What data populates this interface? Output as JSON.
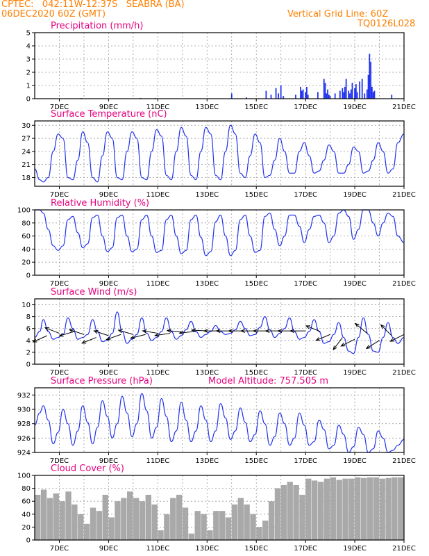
{
  "header": {
    "station": "CPTEC:   042:11W-12:37S   SEABRA (BA)",
    "datetime": "06DEC2020 60Z (GMT)",
    "grid_note": "Vertical Grid Line: 60Z",
    "model_code": "TQ0126L028",
    "model_altitude": "Model Altitude: 757.505 m"
  },
  "colors": {
    "header": "#ff7f00",
    "panel_title": "#e6007e",
    "series": "#2233ee",
    "cloud": "#a9a9a9",
    "wind_arrow": "#000000"
  },
  "x_axis": {
    "start": "06DEC2020 00Z",
    "end": "21DEC2020 00Z",
    "tick_labels": [
      "7DEC",
      "9DEC",
      "11DEC",
      "13DEC",
      "15DEC",
      "17DEC",
      "19DEC",
      "21DEC"
    ],
    "tick_days": [
      7,
      9,
      11,
      13,
      15,
      17,
      19,
      21
    ],
    "vertical_grid": "dotted, daily"
  },
  "chart_data": [
    {
      "type": "bar",
      "title": "Precipitation (mm/h)",
      "ylim": [
        0,
        5
      ],
      "yticks": [
        0,
        1,
        2,
        3,
        4,
        5
      ],
      "x": [
        7.9,
        10.3,
        10.9,
        14.0,
        14.6,
        15.4,
        15.6,
        15.8,
        15.9,
        16.0,
        16.1,
        16.6,
        16.8,
        16.85,
        16.9,
        17.0,
        17.05,
        17.1,
        17.5,
        17.75,
        17.8,
        17.85,
        17.9,
        17.95,
        18.0,
        18.2,
        18.4,
        18.5,
        18.55,
        18.6,
        18.65,
        18.75,
        18.8,
        18.85,
        18.9,
        19.0,
        19.05,
        19.1,
        19.2,
        19.3,
        19.4,
        19.5,
        19.55,
        19.6,
        19.65,
        19.7,
        19.75,
        19.8,
        20.5
      ],
      "values": [
        0.05,
        0.05,
        0.05,
        0.4,
        0.1,
        0.6,
        0.3,
        0.8,
        0.4,
        1.0,
        0.2,
        0.3,
        0.9,
        0.6,
        0.7,
        0.5,
        0.9,
        0.3,
        0.5,
        1.5,
        1.2,
        0.4,
        0.7,
        0.3,
        0.2,
        0.4,
        0.6,
        0.8,
        0.5,
        0.9,
        1.5,
        0.6,
        0.4,
        0.7,
        1.2,
        0.8,
        1.1,
        0.5,
        1.3,
        1.5,
        0.4,
        0.7,
        1.8,
        3.4,
        2.8,
        0.9,
        0.5,
        0.6,
        0.3
      ]
    },
    {
      "type": "line",
      "title": "Surface Temperature (nC)",
      "ylim": [
        16,
        31
      ],
      "yticks": [
        18,
        21,
        24,
        27,
        30
      ],
      "x": [
        6.0,
        6.2,
        6.35,
        6.55,
        6.75,
        6.95,
        7.15,
        7.35,
        7.55,
        7.75,
        7.95,
        8.15,
        8.35,
        8.55,
        8.75,
        8.95,
        9.15,
        9.35,
        9.55,
        9.75,
        9.95,
        10.15,
        10.35,
        10.55,
        10.75,
        10.95,
        11.15,
        11.35,
        11.55,
        11.75,
        11.95,
        12.15,
        12.35,
        12.55,
        12.75,
        12.95,
        13.15,
        13.35,
        13.55,
        13.75,
        13.95,
        14.15,
        14.35,
        14.55,
        14.75,
        14.95,
        15.15,
        15.35,
        15.55,
        15.75,
        15.95,
        16.15,
        16.35,
        16.55,
        16.75,
        16.95,
        17.15,
        17.35,
        17.55,
        17.75,
        17.95,
        18.15,
        18.35,
        18.55,
        18.75,
        18.95,
        19.15,
        19.35,
        19.55,
        19.75,
        19.95,
        20.15,
        20.35,
        20.55,
        20.75,
        21.0
      ],
      "values": [
        20,
        17.5,
        17,
        18,
        24,
        28,
        27,
        18,
        17.5,
        22,
        28.5,
        26,
        18,
        17,
        23,
        28.5,
        27,
        18,
        17.5,
        24,
        28.5,
        27,
        18,
        17.5,
        24,
        29,
        27.5,
        18.5,
        17.5,
        24,
        29.5,
        27.5,
        18.5,
        17.5,
        24,
        29.5,
        28,
        18.5,
        17.5,
        24,
        30,
        28,
        19,
        18,
        23,
        28,
        26,
        18,
        18.5,
        22,
        27,
        24,
        19,
        19,
        24,
        26,
        23,
        19,
        19.5,
        22,
        25.5,
        24,
        19,
        19,
        21,
        25,
        24,
        19,
        19.5,
        22,
        26,
        24,
        19,
        20,
        26,
        28
      ]
    },
    {
      "type": "line",
      "title": "Relative Humidity (%)",
      "ylim": [
        0,
        100
      ],
      "yticks": [
        0,
        20,
        40,
        60,
        80,
        100
      ],
      "x": [
        6.0,
        6.2,
        6.35,
        6.55,
        6.75,
        6.95,
        7.15,
        7.35,
        7.55,
        7.75,
        7.95,
        8.15,
        8.35,
        8.55,
        8.75,
        8.95,
        9.15,
        9.35,
        9.55,
        9.75,
        9.95,
        10.15,
        10.35,
        10.55,
        10.75,
        10.95,
        11.15,
        11.35,
        11.55,
        11.75,
        11.95,
        12.15,
        12.35,
        12.55,
        12.75,
        12.95,
        13.15,
        13.35,
        13.55,
        13.75,
        13.95,
        14.15,
        14.35,
        14.55,
        14.75,
        14.95,
        15.15,
        15.35,
        15.55,
        15.75,
        15.95,
        16.15,
        16.35,
        16.55,
        16.75,
        16.95,
        17.15,
        17.35,
        17.55,
        17.75,
        17.95,
        18.15,
        18.35,
        18.55,
        18.75,
        18.95,
        19.15,
        19.35,
        19.55,
        19.75,
        19.95,
        20.15,
        20.35,
        20.55,
        20.75,
        21.0
      ],
      "values": [
        100,
        100,
        95,
        70,
        45,
        38,
        45,
        85,
        90,
        65,
        42,
        48,
        88,
        92,
        60,
        36,
        42,
        88,
        92,
        60,
        36,
        40,
        85,
        92,
        60,
        35,
        38,
        85,
        92,
        60,
        33,
        38,
        85,
        92,
        58,
        30,
        36,
        82,
        92,
        60,
        30,
        38,
        85,
        92,
        60,
        35,
        38,
        90,
        95,
        70,
        45,
        60,
        92,
        92,
        75,
        50,
        70,
        90,
        92,
        80,
        50,
        60,
        95,
        100,
        90,
        55,
        70,
        100,
        100,
        80,
        60,
        80,
        95,
        90,
        60,
        50
      ]
    },
    {
      "type": "line",
      "title": "Surface Wind (m/s)",
      "ylim": [
        0,
        11
      ],
      "yticks": [
        0,
        2,
        4,
        6,
        8,
        10
      ],
      "x": [
        6.0,
        6.2,
        6.35,
        6.55,
        6.75,
        6.95,
        7.15,
        7.35,
        7.55,
        7.75,
        7.95,
        8.15,
        8.35,
        8.55,
        8.75,
        8.95,
        9.15,
        9.35,
        9.55,
        9.75,
        9.95,
        10.15,
        10.35,
        10.55,
        10.75,
        10.95,
        11.15,
        11.35,
        11.55,
        11.75,
        11.95,
        12.15,
        12.35,
        12.55,
        12.75,
        12.95,
        13.15,
        13.35,
        13.55,
        13.75,
        13.95,
        14.15,
        14.35,
        14.55,
        14.75,
        14.95,
        15.15,
        15.35,
        15.55,
        15.75,
        15.95,
        16.15,
        16.35,
        16.55,
        16.75,
        16.95,
        17.15,
        17.35,
        17.55,
        17.75,
        17.95,
        18.15,
        18.35,
        18.55,
        18.75,
        18.95,
        19.15,
        19.35,
        19.55,
        19.75,
        19.95,
        20.15,
        20.35,
        20.55,
        20.75,
        21.0
      ],
      "values": [
        4.5,
        5.5,
        7.5,
        5.5,
        4.2,
        4.5,
        5.0,
        7.8,
        6.0,
        4.2,
        4.5,
        5.0,
        7.5,
        5.5,
        3.8,
        4.0,
        5.2,
        8.8,
        5.5,
        3.5,
        4.2,
        5.0,
        7.8,
        5.2,
        4.0,
        4.5,
        5.5,
        7.8,
        5.5,
        4.2,
        4.8,
        5.8,
        7.2,
        5.5,
        4.5,
        5.0,
        5.5,
        6.5,
        5.5,
        5.0,
        5.2,
        5.8,
        7.2,
        6.0,
        4.8,
        5.0,
        6.2,
        8.0,
        5.8,
        4.5,
        5.2,
        6.0,
        7.8,
        5.5,
        4.2,
        4.5,
        5.5,
        7.5,
        5.5,
        3.5,
        3.8,
        5.0,
        7.0,
        4.5,
        2.2,
        1.8,
        4.5,
        7.8,
        5.0,
        2.2,
        2.0,
        4.5,
        7.0,
        4.5,
        3.5,
        4.5
      ],
      "wind_vectors": [
        {
          "x": 6.5,
          "speed": 4.8,
          "u": -1.0,
          "v": -0.45
        },
        {
          "x": 7.0,
          "speed": 5.2,
          "u": -0.9,
          "v": 0.35
        },
        {
          "x": 7.6,
          "speed": 5.5,
          "u": -1.0,
          "v": -0.3
        },
        {
          "x": 8.0,
          "speed": 5.0,
          "u": -0.9,
          "v": 0.3
        },
        {
          "x": 8.5,
          "speed": 4.5,
          "u": -1.0,
          "v": -0.4
        },
        {
          "x": 9.0,
          "speed": 4.8,
          "u": -0.9,
          "v": 0.3
        },
        {
          "x": 9.5,
          "speed": 5.0,
          "u": -1.0,
          "v": -0.35
        },
        {
          "x": 10.0,
          "speed": 5.0,
          "u": -0.85,
          "v": 0.25
        },
        {
          "x": 10.5,
          "speed": 5.0,
          "u": -1.0,
          "v": -0.25
        },
        {
          "x": 11.0,
          "speed": 5.2,
          "u": -0.9,
          "v": 0.15
        },
        {
          "x": 11.5,
          "speed": 5.2,
          "u": -1.0,
          "v": -0.15
        },
        {
          "x": 12.0,
          "speed": 5.4,
          "u": -0.95,
          "v": 0.1
        },
        {
          "x": 12.5,
          "speed": 5.5,
          "u": -1.0,
          "v": -0.1
        },
        {
          "x": 13.0,
          "speed": 5.6,
          "u": -1.0,
          "v": 0.05
        },
        {
          "x": 13.5,
          "speed": 5.6,
          "u": -1.0,
          "v": 0.0
        },
        {
          "x": 14.0,
          "speed": 5.6,
          "u": -1.0,
          "v": 0.0
        },
        {
          "x": 14.5,
          "speed": 5.6,
          "u": -1.0,
          "v": 0.0
        },
        {
          "x": 15.0,
          "speed": 5.6,
          "u": -1.0,
          "v": 0.0
        },
        {
          "x": 15.5,
          "speed": 5.6,
          "u": -1.0,
          "v": 0.0
        },
        {
          "x": 16.0,
          "speed": 5.6,
          "u": -1.0,
          "v": 0.0
        },
        {
          "x": 16.5,
          "speed": 5.6,
          "u": -1.0,
          "v": 0.0
        },
        {
          "x": 17.0,
          "speed": 5.6,
          "u": -1.0,
          "v": 0.0
        },
        {
          "x": 17.6,
          "speed": 5.5,
          "u": -0.5,
          "v": 0.2
        },
        {
          "x": 18.0,
          "speed": 5.0,
          "u": -0.95,
          "v": -0.4
        },
        {
          "x": 18.5,
          "speed": 4.5,
          "u": -0.6,
          "v": -0.8
        },
        {
          "x": 19.0,
          "speed": 4.2,
          "u": -1.0,
          "v": -0.5
        },
        {
          "x": 19.5,
          "speed": 5.2,
          "u": -0.6,
          "v": 0.5
        },
        {
          "x": 20.0,
          "speed": 4.0,
          "u": -0.8,
          "v": -0.5
        },
        {
          "x": 20.5,
          "speed": 4.8,
          "u": -0.6,
          "v": 0.6
        },
        {
          "x": 21.0,
          "speed": 5.0,
          "u": -0.8,
          "v": -0.4
        }
      ]
    },
    {
      "type": "line",
      "title": "Surface Pressure (hPa)",
      "ylim": [
        924,
        933
      ],
      "yticks": [
        924,
        926,
        928,
        930,
        932
      ],
      "x": [
        6.0,
        6.2,
        6.35,
        6.55,
        6.75,
        6.95,
        7.15,
        7.35,
        7.55,
        7.75,
        7.95,
        8.15,
        8.35,
        8.55,
        8.75,
        8.95,
        9.15,
        9.35,
        9.55,
        9.75,
        9.95,
        10.15,
        10.35,
        10.55,
        10.75,
        10.95,
        11.15,
        11.35,
        11.55,
        11.75,
        11.95,
        12.15,
        12.35,
        12.55,
        12.75,
        12.95,
        13.15,
        13.35,
        13.55,
        13.75,
        13.95,
        14.15,
        14.35,
        14.55,
        14.75,
        14.95,
        15.15,
        15.35,
        15.55,
        15.75,
        15.95,
        16.15,
        16.35,
        16.55,
        16.75,
        16.95,
        17.15,
        17.35,
        17.55,
        17.75,
        17.95,
        18.15,
        18.35,
        18.55,
        18.75,
        18.95,
        19.15,
        19.35,
        19.55,
        19.75,
        19.95,
        20.15,
        20.35,
        20.55,
        20.75,
        21.0
      ],
      "values": [
        927.8,
        929.5,
        930.5,
        928.5,
        925.2,
        926.8,
        930.0,
        928.0,
        925.0,
        927.0,
        930.5,
        928.2,
        925.2,
        927.5,
        931.2,
        929.0,
        926.0,
        928.0,
        931.8,
        929.5,
        926.2,
        928.0,
        932.2,
        929.8,
        926.0,
        927.5,
        931.5,
        929.0,
        925.5,
        927.0,
        931.0,
        928.5,
        925.5,
        927.0,
        930.5,
        928.5,
        925.5,
        927.0,
        930.8,
        928.8,
        925.8,
        927.0,
        930.2,
        928.2,
        925.5,
        926.5,
        929.8,
        928.0,
        925.0,
        926.2,
        929.5,
        928.0,
        925.0,
        926.0,
        929.5,
        927.8,
        925.0,
        925.5,
        928.5,
        927.2,
        924.5,
        925.0,
        927.8,
        926.5,
        924.0,
        924.8,
        927.5,
        926.5,
        924.0,
        924.5,
        927.0,
        926.0,
        924.0,
        924.3,
        925.0,
        925.8
      ]
    },
    {
      "type": "bar",
      "title": "Cloud Cover (%)",
      "ylim": [
        0,
        100
      ],
      "yticks": [
        0,
        20,
        40,
        60,
        80,
        100
      ],
      "x": [
        6.0,
        6.25,
        6.5,
        6.75,
        7.0,
        7.25,
        7.5,
        7.75,
        8.0,
        8.25,
        8.5,
        8.75,
        9.0,
        9.25,
        9.5,
        9.75,
        10.0,
        10.25,
        10.5,
        10.75,
        11.0,
        11.25,
        11.5,
        11.75,
        12.0,
        12.25,
        12.5,
        12.75,
        13.0,
        13.25,
        13.5,
        13.75,
        14.0,
        14.25,
        14.5,
        14.75,
        15.0,
        15.25,
        15.5,
        15.75,
        16.0,
        16.25,
        16.5,
        16.75,
        17.0,
        17.25,
        17.5,
        17.75,
        18.0,
        18.25,
        18.5,
        18.75,
        19.0,
        19.25,
        19.5,
        19.75,
        20.0,
        20.25,
        20.5,
        20.75
      ],
      "values": [
        70,
        78,
        65,
        72,
        60,
        75,
        55,
        40,
        25,
        50,
        45,
        70,
        35,
        60,
        65,
        75,
        65,
        60,
        70,
        55,
        15,
        40,
        65,
        70,
        50,
        10,
        45,
        40,
        15,
        45,
        45,
        35,
        55,
        65,
        55,
        40,
        20,
        30,
        60,
        80,
        85,
        90,
        85,
        70,
        95,
        92,
        90,
        95,
        97,
        93,
        95,
        95,
        97,
        96,
        97,
        97,
        95,
        96,
        97,
        97
      ]
    }
  ]
}
